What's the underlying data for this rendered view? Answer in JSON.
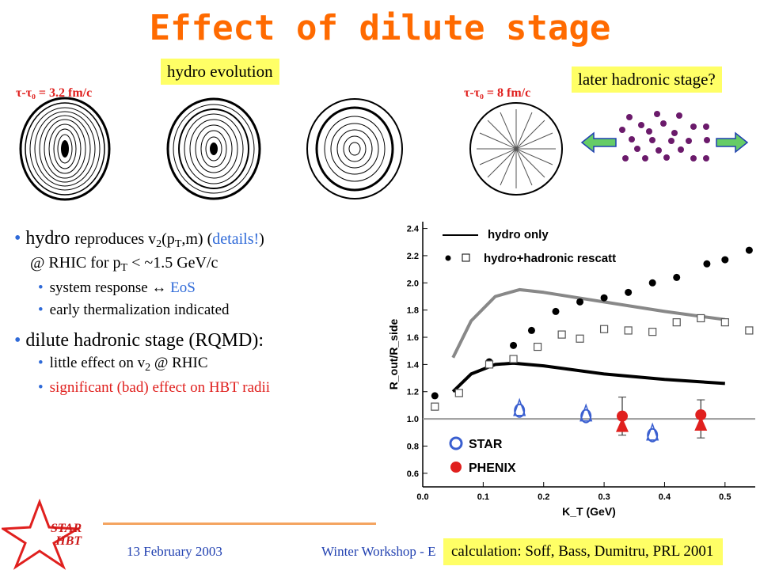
{
  "slide": {
    "title": "Effect of dilute stage",
    "label_hydro": "hydro evolution",
    "label_later": "later hadronic stage?",
    "tau1": "τ-τ₀ = 3.2 fm/c",
    "tau2": "τ-τ₀ = 8 fm/c",
    "bullets": {
      "b1_a": "hydro ",
      "b1_b": "reproduces v",
      "b1_sub1": "2",
      "b1_c": "(p",
      "b1_sub2": "T",
      "b1_d": ",m) (",
      "b1_details": "details!",
      "b1_e": ")",
      "b1_line2a": "@ RHIC for p",
      "b1_line2sub": "T",
      "b1_line2b": " < ~1.5 GeV/c",
      "s1a": "system response ",
      "s1arrow": "↔",
      "s1b": " EoS",
      "s2": "early thermalization indicated",
      "b2": "dilute hadronic stage (RQMD):",
      "s3a": "little effect on v",
      "s3sub": "2",
      "s3b": " @ RHIC",
      "s4": "significant (bad) effect on HBT radii"
    },
    "citation": "calculation: Soff, Bass, Dumitru, PRL 2001",
    "date": "13 February 2003",
    "workshop": "Winter Workshop - E",
    "logo_line1": "STAR",
    "logo_line2": "HBT",
    "colors": {
      "title": "#ff6a00",
      "highlight": "#ffff66",
      "blue": "#2f6ad8",
      "red": "#e0201e"
    }
  },
  "chart_data": {
    "type": "scatter",
    "xlabel": "K_T (GeV)",
    "ylabel": "R_out/R_side",
    "xlim": [
      0.0,
      0.55
    ],
    "ylim": [
      0.5,
      2.45
    ],
    "xticks": [
      0,
      0.1,
      0.2,
      0.3,
      0.4,
      0.5
    ],
    "xtick_labels": [
      "0.0",
      "0.1",
      "0.2",
      "0.3",
      "0.4",
      "0.5"
    ],
    "yticks": [
      0.6,
      0.8,
      1.0,
      1.2,
      1.4,
      1.6,
      1.8,
      2.0,
      2.2,
      2.4
    ],
    "ytick_labels": [
      "0.6",
      "0.8",
      "1.0",
      "1.2",
      "1.4",
      "1.6",
      "1.8",
      "2.0",
      "2.2",
      "2.4"
    ],
    "legend": [
      "hydro only",
      "hydro+hadronic rescatt",
      "STAR",
      "PHENIX"
    ],
    "hydro_only_curves": [
      {
        "color": "#000000",
        "points": [
          [
            0.05,
            1.2
          ],
          [
            0.08,
            1.33
          ],
          [
            0.12,
            1.4
          ],
          [
            0.15,
            1.41
          ],
          [
            0.2,
            1.39
          ],
          [
            0.3,
            1.33
          ],
          [
            0.4,
            1.29
          ],
          [
            0.5,
            1.26
          ]
        ]
      },
      {
        "color": "#888888",
        "points": [
          [
            0.05,
            1.45
          ],
          [
            0.08,
            1.72
          ],
          [
            0.12,
            1.9
          ],
          [
            0.16,
            1.95
          ],
          [
            0.2,
            1.93
          ],
          [
            0.3,
            1.86
          ],
          [
            0.4,
            1.79
          ],
          [
            0.5,
            1.73
          ]
        ]
      }
    ],
    "rescatt_filled": [
      [
        0.02,
        1.17
      ],
      [
        0.06,
        1.19
      ],
      [
        0.11,
        1.42
      ],
      [
        0.15,
        1.54
      ],
      [
        0.18,
        1.65
      ],
      [
        0.22,
        1.79
      ],
      [
        0.26,
        1.86
      ],
      [
        0.3,
        1.89
      ],
      [
        0.34,
        1.93
      ],
      [
        0.38,
        2.0
      ],
      [
        0.42,
        2.04
      ],
      [
        0.47,
        2.14
      ],
      [
        0.5,
        2.17
      ],
      [
        0.54,
        2.24
      ]
    ],
    "rescatt_open": [
      [
        0.02,
        1.09
      ],
      [
        0.06,
        1.19
      ],
      [
        0.11,
        1.4
      ],
      [
        0.15,
        1.44
      ],
      [
        0.19,
        1.53
      ],
      [
        0.23,
        1.62
      ],
      [
        0.26,
        1.59
      ],
      [
        0.3,
        1.66
      ],
      [
        0.34,
        1.65
      ],
      [
        0.38,
        1.64
      ],
      [
        0.42,
        1.71
      ],
      [
        0.46,
        1.74
      ],
      [
        0.5,
        1.71
      ],
      [
        0.54,
        1.65
      ]
    ],
    "star": [
      [
        0.16,
        1.06
      ],
      [
        0.27,
        1.02
      ],
      [
        0.38,
        0.88
      ]
    ],
    "phenix": [
      [
        0.33,
        1.02
      ],
      [
        0.46,
        1.03
      ]
    ],
    "phenix_errors": [
      [
        0.33,
        0.88,
        1.16
      ],
      [
        0.46,
        0.86,
        1.14
      ]
    ]
  }
}
